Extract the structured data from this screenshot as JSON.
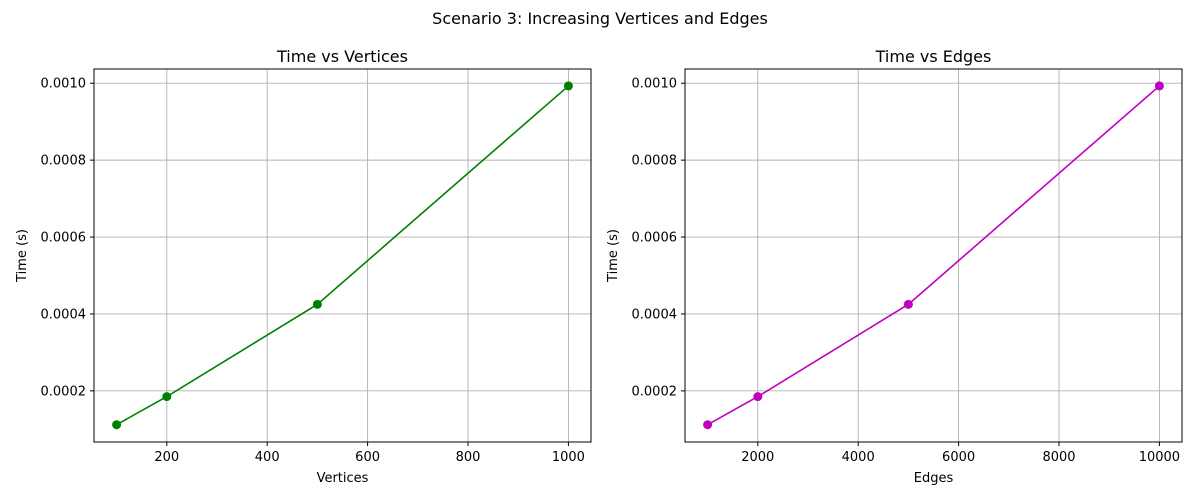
{
  "figure": {
    "suptitle": "Scenario 3: Increasing Vertices and Edges"
  },
  "chart_data": [
    {
      "type": "line",
      "title": "Time vs Vertices",
      "xlabel": "Vertices",
      "ylabel": "Time (s)",
      "xlim": [
        55,
        1045
      ],
      "ylim": [
        6.7e-05,
        0.001037
      ],
      "xticks": [
        200,
        400,
        600,
        800,
        1000
      ],
      "yticks": [
        0.0002,
        0.0004,
        0.0006,
        0.0008,
        0.001
      ],
      "ytick_labels": [
        "0.0002",
        "0.0004",
        "0.0006",
        "0.0008",
        "0.0010"
      ],
      "grid": true,
      "series": [
        {
          "x": [
            100,
            200,
            500,
            1000
          ],
          "y": [
            0.000112,
            0.000185,
            0.000425,
            0.000993
          ],
          "color": "#008000",
          "marker": "circle"
        }
      ]
    },
    {
      "type": "line",
      "title": "Time vs Edges",
      "xlabel": "Edges",
      "ylabel": "Time (s)",
      "xlim": [
        550,
        10450
      ],
      "ylim": [
        6.7e-05,
        0.001037
      ],
      "xticks": [
        2000,
        4000,
        6000,
        8000,
        10000
      ],
      "yticks": [
        0.0002,
        0.0004,
        0.0006,
        0.0008,
        0.001
      ],
      "ytick_labels": [
        "0.0002",
        "0.0004",
        "0.0006",
        "0.0008",
        "0.0010"
      ],
      "grid": true,
      "series": [
        {
          "x": [
            1000,
            2000,
            5000,
            10000
          ],
          "y": [
            0.000112,
            0.000185,
            0.000425,
            0.000993
          ],
          "color": "#bf00bf",
          "marker": "circle"
        }
      ]
    }
  ]
}
